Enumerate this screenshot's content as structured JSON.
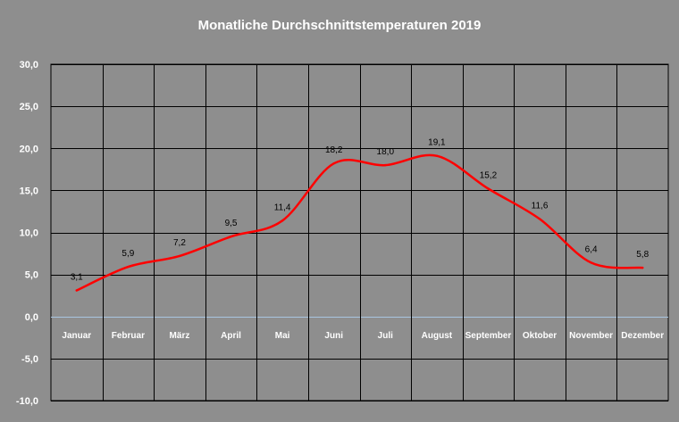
{
  "chart_data": {
    "type": "line",
    "title": "Monatliche Durchschnittstemperaturen 2019",
    "categories": [
      "Januar",
      "Februar",
      "März",
      "April",
      "Mai",
      "Juni",
      "Juli",
      "August",
      "September",
      "Oktober",
      "November",
      "Dezember"
    ],
    "series": [
      {
        "values": [
          3.1,
          5.9,
          7.2,
          9.5,
          11.4,
          18.2,
          18.0,
          19.1,
          15.2,
          11.6,
          6.4,
          5.8
        ],
        "data_labels": [
          "3,1",
          "5,9",
          "7,2",
          "9,5",
          "11,4",
          "18,2",
          "18,0",
          "19,1",
          "15,2",
          "11,6",
          "6,4",
          "5,8"
        ],
        "color": "#ff0000",
        "smooth": true
      }
    ],
    "ylim": [
      -10,
      30
    ],
    "ytick_values": [
      30,
      25,
      20,
      15,
      10,
      5,
      0,
      -5,
      -10
    ],
    "ytick_labels": [
      "30,0",
      "25,0",
      "20,0",
      "15,0",
      "10,0",
      "5,0",
      "0,0",
      "-5,0",
      "-10,0"
    ],
    "xlabel": "",
    "ylabel": "",
    "grid": true,
    "legend": "none",
    "colors": {
      "background": "#8e8e8e",
      "grid": "#000000",
      "zero_line": "#a8c4e0",
      "text": "#ffffff",
      "data_label": "#000000"
    }
  }
}
